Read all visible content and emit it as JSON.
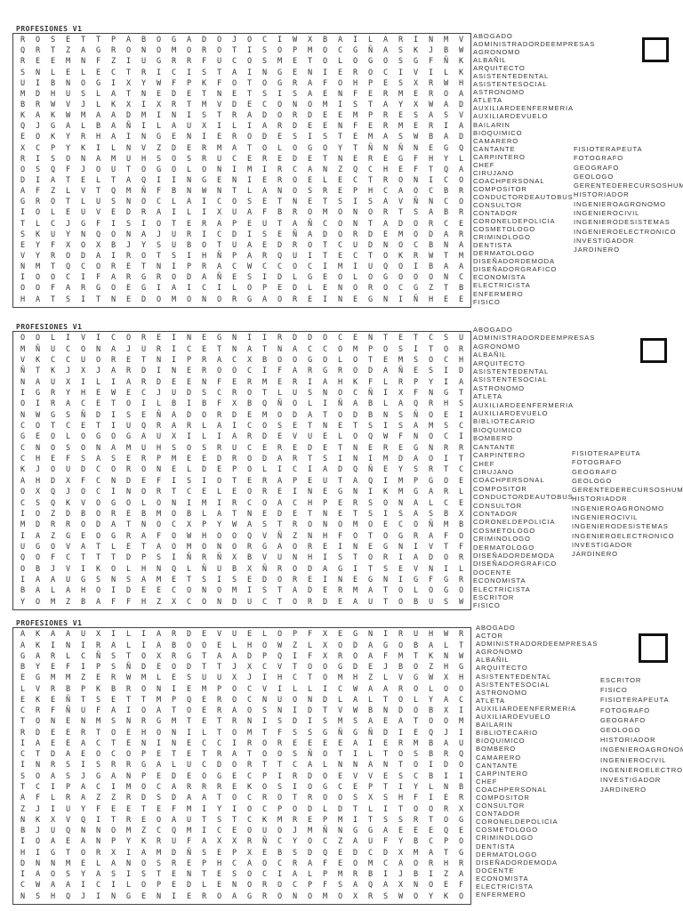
{
  "puzzles": [
    {
      "title": "PROFESIONES V1",
      "grid": [
        "ROSETTPABOGADOJOCIWXBAILARINMV",
        "QRTZAGRONOMOROTISOPMOCGÑASKJBW",
        "REEMNFZIUGRRFUCOSMETOLOGOSGFÑK",
        "SNLELECTRICISTAINGENIEROCIVILK",
        "UIBNOGIXYWFPKFOTOGRAFOHPESXRWH",
        "MDHUSLATNEDETNETSISAENFERMEROA",
        "BRWVJLKXIXRTMVDECONOMISTAYXWAD",
        "KAKWMAADMINISTRADORDEEMPRESASV",
        "QJGALBAÑILAUXILIARDEENFERMERIA",
        "EOKYRHAINGENIERODESISTEMASWBAD",
        "XCPYKILNVZDERMATOLOGOYTÑNÑNEGQ",
        "RISONAMUHSOSRUCEREDETNEREGFHYL",
        "OSQFJOUTOGOLONIMIRCANZQCHEFTQA",
        "DIATELTAQIINGENIEROELECTRONICO",
        "AFZLVTQMÑFBNWNTLANOSREPHCAOCBR",
        "GROTLUSNOCLAICOSETNETSISAVÑNCO",
        "IOLEUVEDRAILIXUAFBROMONORTSABR",
        "TLCJGFISIOTERAPEUTAÑCONTADORCE",
        "SKUYNQONAJURICDISEÑADORDEMODAR",
        "EYFXOXBJYSUBOTUAEDROTCUDNOCBNA",
        "VYRODAIROTSIHÑPARQUITECTOKRWTM",
        "NMTQCORETNIPRACWCCOCIMIUQOIBAA",
        "IOOCIFARGRODAÑESIDLGEOLOGOOONC",
        "OOFARGOEGIAICILOPEDLENOROCGZTB",
        "HATSITNEDOMONORGAOREINEGNIÑHEE"
      ],
      "words_left": [
        "ABOGADO",
        "ADMINISTRADORDEEMPRESAS",
        "AGRONOMO",
        "ALBAÑIL",
        "ARQUITECTO",
        "ASISTENTEDENTAL",
        "ASISTENTESOCIAL",
        "ASTRONOMO",
        "ATLETA",
        "AUXILIARDEENFERMERIA",
        "AUXILIARDEVUELO",
        "BAILARIN",
        "BIOQUIMICO",
        "CAMARERO",
        "CANTANTE",
        "CARPINTERO",
        "CHEF",
        "CIRUJANO",
        "COACHPERSONAL",
        "COMPOSITOR",
        "CONDUCTORDEAUTOBUS",
        "CONSULTOR",
        "CONTADOR",
        "CORONELDEPOLICIA",
        "COSMETOLOGO",
        "CRIMINOLOGO",
        "DENTISTA",
        "DERMATOLOGO",
        "DISEÑADORDEMODA",
        "DISEÑADORGRAFICO",
        "ECONOMISTA",
        "ELECTRICISTA",
        "ENFERMERO",
        "FISICO"
      ],
      "words_right": [
        "FISIOTERAPEUTA",
        "FOTOGRAFO",
        "GEOGRAFO",
        "GEOLOGO",
        "GERENTEDERECURSOSHUMANOS",
        "HISTORIADOR",
        "INGENIEROAGRONOMO",
        "INGENIEROCIVIL",
        "INGENIERODESISTEMAS",
        "INGENIEROELECTRONICO",
        "INVESTIGADOR",
        "JARDINERO"
      ]
    },
    {
      "title": "PROFESIONES V1",
      "grid": [
        "OOLIVICOREINEGNIIRDDOCENTETCSU",
        "MÑUCONAJURICETNATNACCOMPOSITOR",
        "VKCCUORETNIPRACXBOOGOLOTEMSOCH",
        "ÑTKJXJARDINEROOCIFARGRODAÑESID",
        "NAUXILIARDEENFERMERIAHKFLRPYIA",
        "IGRYHEWECJUDSCROTLUSNOCÑIXFNGT",
        "OIRACETOILBIBFXBQÑOLIÑABLAQRHS",
        "NWGSÑDISEÑADORDEMODATODBNSÑOEI",
        "COTCETIUQRARLAICOSETNETSISAMSC",
        "GEOLOGOGAUXILIARDEVUELOQWFNOCI",
        "CNOSONAMUHSOSRUCEREDETNEREGNRR",
        "CHEFSASERPMEEDRODARTSINIMDAOIT",
        "KJOUDCORONELDEPOLICIADQÑEYSRTC",
        "AHDXFCNDEFISIOTERAPEUTAQIMPGOE",
        "OXQJOCINORTCELEOREINEGNIKMGARL",
        "CSQKVOGOLONIMIRCOACHPERSONALCE",
        "IOZDBOREBMOBLATNEDETNETSISASBX",
        "MDRRODATNOCXPYWASTRONOMOECOÑMB",
        "IAZGEOGRAFOWHOOQVÑZNHFOTOGRAFO",
        "UGOVATLETAOMONORGAOREINEGNIVTF",
        "QOFCTTTDPSIÑRÑXBVUNHISTORIADOR",
        "OBJVIKOLHNQLÑUBXÑRODAGITSEVNIL",
        "IAAUGSNSAMETSISEDOREINEGNIGFGR",
        "BALAHOIDEECONOMISTADERMATOLOGO",
        "YOMZBAFFHZXCONDUCTORDEAUTOBUSW"
      ],
      "words_left": [
        "ABOGADO",
        "ADMINISTRADORDEEMPRESAS",
        "AGRONOMO",
        "ALBAÑIL",
        "ARQUITECTO",
        "ASISTENTEDENTAL",
        "ASISTENTESOCIAL",
        "ASTRONOMO",
        "ATLETA",
        "AUXILIARDEENFERMERIA",
        "AUXILIARDEVUELO",
        "BIBLIOTECARIO",
        "BIOQUIMICO",
        "BOMBERO",
        "CANTANTE",
        "CARPINTERO",
        "CHEF",
        "CIRUJANO",
        "COACHPERSONAL",
        "COMPOSITOR",
        "CONDUCTORDEAUTOBUS",
        "CONSULTOR",
        "CONTADOR",
        "CORONELDEPOLICIA",
        "COSMETOLOGO",
        "CRIMINOLOGO",
        "DERMATOLOGO",
        "DISEÑADORDEMODA",
        "DISEÑADORGRAFICO",
        "DOCENTE",
        "ECONOMISTA",
        "ELECTRICISTA",
        "ESCRITOR",
        "FISICO"
      ],
      "words_right": [
        "FISIOTERAPEUTA",
        "FOTOGRAFO",
        "GEOGRAFO",
        "GEOLOGO",
        "GERENTEDERECURSOSHUMANOS",
        "HISTORIADOR",
        "INGENIEROAGRONOMO",
        "INGENIEROCIVIL",
        "INGENIERODESISTEMAS",
        "INGENIEROELECTRONICO",
        "INVESTIGADOR",
        "JARDINERO"
      ]
    },
    {
      "title": "PROFESIONES V1",
      "grid": [
        "AKAAUXILIARDEVUELOPFXEGNIRUHWR",
        "AKINIRALIABOOELHOWZLXODAGOBALT",
        "GARLCÑSTOXRGTAADPQIFXROAFMTKNW",
        "BYEFIPSÑDEODTTJXCVTOOGDEJBOZHG",
        "EGMMZERWMLESUUXJIHCTOMHZLVGWXH",
        "LVRBPKBRONIEMPOCVILLICWAAROLOO",
        "EKEÑTSETTMPQEROCNUONDLALTOLYAC",
        "CRFÑUFAIOATOERAOSNIDTVWBNDOBXI",
        "TONENMSNRGMTETRNISDISMSAEATOOM",
        "RDEERTOEHONILTOMTFSSGÑGÑDIEQJI",
        "IAEEACTENINECCIROREEEEAIERMBAU",
        "CTDAEOCOPETETRATOOSÑOTILTOSBRQ",
        "INRSISRRGALUCDORTTCALNNANTOIDO",
        "SOASJGANPEDEOGECPIRDOEVVESCBII",
        "TCIPACIMOCARRREKOSIOGCEPTIYLNB",
        "AFLRAZZRDSDAATOCROTROOSXSHFIER",
        "ZJIUYFEETEFMIYIOCPODLDTLITOORX",
        "NKXVQITREOAUTSTCKMREPMITSSRTOG",
        "BJUQNNOMZCQMICEOUOJMÑNGGAEEEQE",
        "IOAEANPYKRUFAXXRÑCYOCZAUFYBCPO",
        "HIGTORXIAMDÑSEPXEBSDQEDCDXMATG",
        "DNNMELANOSREPHCAOCRAFEOMCAORHR",
        "IAOSYASISTENTESOCIALPMRBIJBIZA",
        "CWAAICILOPEDLENOROCPFSAQAXNOEF",
        "NSHQJINGENIEROAGRONOMOXRSWOYKO"
      ],
      "words_left": [
        "ABOGADO",
        "ACTOR",
        "ADMINISTRADORDEEMPRESAS",
        "AGRONOMO",
        "ALBAÑIL",
        "ARQUITECTO",
        "ASISTENTEDENTAL",
        "ASISTENTESOCIAL",
        "ASTRONOMO",
        "ATLETA",
        "AUXILIARDEENFERMERIA",
        "AUXILIARDEVUELO",
        "BAILARIN",
        "BIBLIOTECARIO",
        "BIOQUIMICO",
        "BOMBERO",
        "CAMARERO",
        "CANTANTE",
        "CARPINTERO",
        "CHEF",
        "COACHPERSONAL",
        "COMPOSITOR",
        "CONSULTOR",
        "CONTADOR",
        "CORONELDEPOLICIA",
        "COSMETOLOGO",
        "CRIMINOLOGO",
        "DENTISTA",
        "DERMATOLOGO",
        "DISEÑADORDEMODA",
        "DOCENTE",
        "ECONOMISTA",
        "ELECTRICISTA",
        "ENFERMERO"
      ],
      "words_right": [
        "ESCRITOR",
        "FISICO",
        "FISIOTERAPEUTA",
        "FOTOGRAFO",
        "GEOGRAFO",
        "GEOLOGO",
        "HISTORIADOR",
        "INGENIEROAGRONOMO",
        "INGENIEROCIVIL",
        "INGENIEROELECTRONICO",
        "INVESTIGADOR",
        "JARDINERO"
      ]
    }
  ]
}
